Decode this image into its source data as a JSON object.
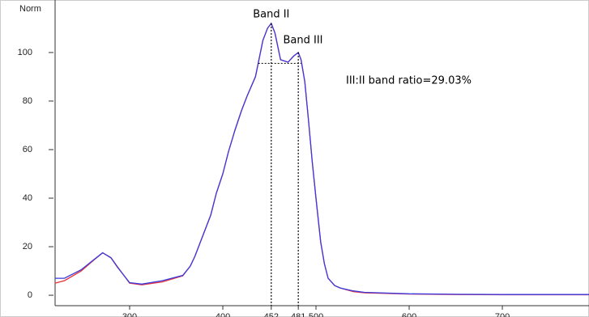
{
  "chart_data": {
    "type": "line",
    "y_label": "Norm",
    "annotations": [
      "Band II",
      "Band III",
      "III:II band ratio=29.03%"
    ],
    "x": [
      220,
      230,
      248,
      260,
      271,
      280,
      287,
      300,
      313,
      335,
      357,
      365,
      370,
      380,
      387,
      393,
      400,
      406,
      413,
      420,
      426,
      435,
      443,
      448,
      452,
      456,
      462,
      470,
      476,
      481,
      484,
      488,
      492,
      496,
      500,
      505,
      509,
      513,
      520,
      526,
      540,
      552,
      600,
      650,
      700,
      793
    ],
    "series": [
      {
        "color": "#e8303a",
        "values": [
          5,
          6,
          10,
          14,
          17.5,
          15.5,
          11.7,
          5,
          4.3,
          5.5,
          8,
          12,
          16,
          26,
          33,
          42,
          50,
          59,
          68,
          76,
          82,
          90,
          105,
          110,
          112,
          108,
          97,
          96,
          98.5,
          100,
          97,
          88,
          72,
          55,
          40,
          22,
          13,
          7,
          4,
          3,
          1.5,
          1,
          0.5,
          0.3,
          0.2,
          0.2
        ]
      },
      {
        "color": "#3a3ae0",
        "values": [
          7,
          7,
          10.5,
          14.2,
          17.5,
          15.4,
          11.5,
          5.2,
          4.6,
          6,
          8.2,
          12,
          16,
          26,
          33,
          42,
          50,
          59,
          68,
          76,
          82,
          90,
          105,
          110,
          112,
          108,
          97,
          96,
          98.5,
          100,
          97,
          88,
          72,
          55,
          40,
          22,
          13,
          7,
          4,
          3,
          1.8,
          1.2,
          0.6,
          0.4,
          0.3,
          0.3
        ]
      }
    ],
    "guides": {
      "x": [
        452,
        481
      ],
      "level": 95.5,
      "level_range": [
        438,
        484
      ]
    },
    "xlim": [
      220,
      793
    ],
    "ylim": [
      -4.3,
      118.3
    ],
    "xticks": [
      300,
      400,
      452,
      481,
      500,
      600,
      700
    ],
    "yticks": [
      0,
      20,
      40,
      60,
      80,
      100
    ]
  }
}
